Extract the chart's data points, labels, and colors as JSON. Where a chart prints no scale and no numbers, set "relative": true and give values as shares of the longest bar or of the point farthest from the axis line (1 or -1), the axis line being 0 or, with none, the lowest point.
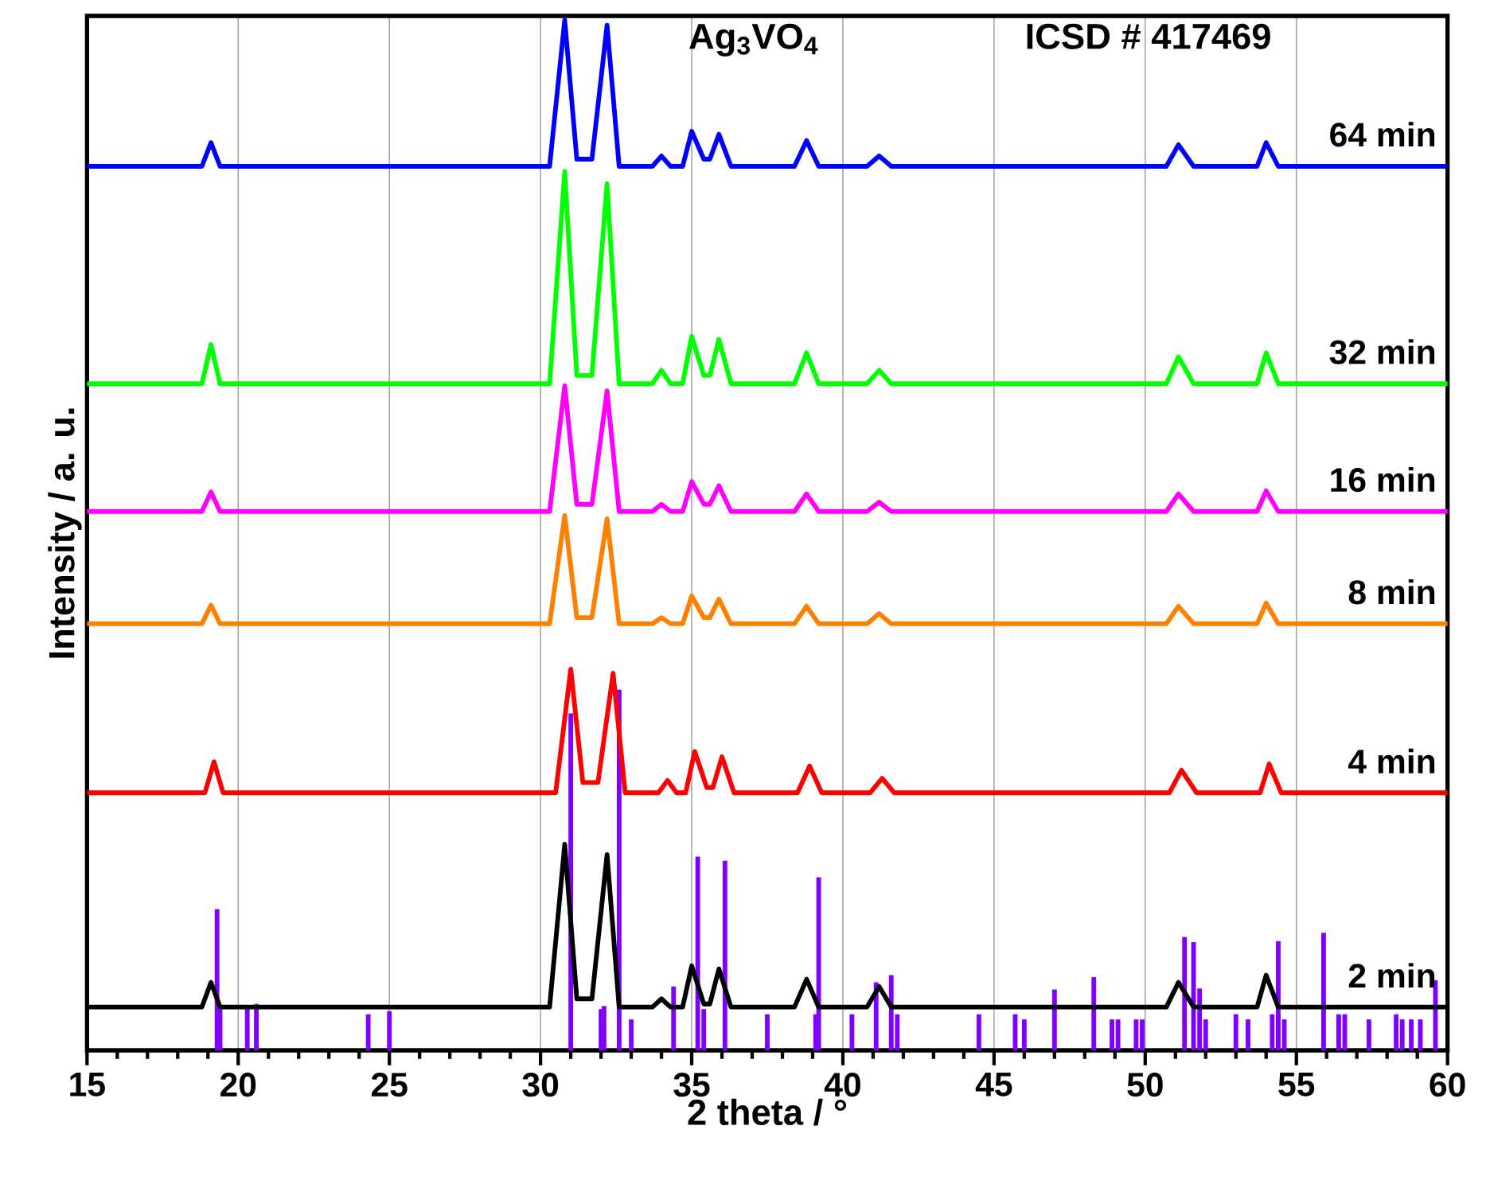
{
  "chart_data": {
    "type": "line",
    "relative": true,
    "xlabel": "2 theta / °",
    "ylabel": "Intensity / a. u.",
    "annotations": [
      "Ag$_{3}$VO$_{4}$",
      "ICSD # 417469"
    ],
    "xlim": [
      15,
      60
    ],
    "xticks": [
      15,
      20,
      25,
      30,
      35,
      40,
      45,
      50,
      55,
      60
    ],
    "grid": "x",
    "tick_labels": "x",
    "legend": false,
    "marker": "none",
    "line_style": "solid",
    "series": [
      {
        "type": "bar",
        "color": "#8000ff",
        "x": [
          19.3,
          19.4,
          20.3,
          20.6,
          24.3,
          25.0,
          31.0,
          32.0,
          32.1,
          32.6,
          33.0,
          34.4,
          35.2,
          35.4,
          36.1,
          37.5,
          39.1,
          39.2,
          40.3,
          41.1,
          41.6,
          41.8,
          44.5,
          45.7,
          46.0,
          47.0,
          48.3,
          48.9,
          49.1,
          49.7,
          49.9,
          51.3,
          51.6,
          51.8,
          52.0,
          53.0,
          53.4,
          54.2,
          54.4,
          54.6,
          55.9,
          56.4,
          56.6,
          57.4,
          58.3,
          58.5,
          58.8,
          59.1,
          59.6
        ],
        "values": [
          0.137,
          0.04,
          0.04,
          0.045,
          0.035,
          0.038,
          0.327,
          0.04,
          0.043,
          0.35,
          0.03,
          0.062,
          0.188,
          0.04,
          0.184,
          0.035,
          0.035,
          0.168,
          0.035,
          0.066,
          0.073,
          0.035,
          0.035,
          0.035,
          0.03,
          0.059,
          0.071,
          0.03,
          0.03,
          0.03,
          0.03,
          0.11,
          0.105,
          0.06,
          0.03,
          0.035,
          0.03,
          0.035,
          0.106,
          0.03,
          0.114,
          0.035,
          0.035,
          0.03,
          0.035,
          0.03,
          0.03,
          0.03,
          0.068
        ]
      },
      {
        "type": "line",
        "name": "2 min",
        "color": "#000000",
        "x": [
          15,
          18.8,
          19.1,
          19.4,
          30.3,
          30.8,
          31.2,
          31.7,
          32.2,
          32.6,
          33.7,
          34.0,
          34.3,
          34.7,
          35.0,
          35.4,
          35.6,
          35.9,
          36.3,
          38.4,
          38.8,
          39.2,
          40.8,
          41.2,
          41.6,
          50.7,
          51.1,
          51.6,
          53.7,
          54.0,
          54.4,
          60
        ],
        "values": [
          0.042,
          0.042,
          0.066,
          0.042,
          0.042,
          0.2,
          0.05,
          0.05,
          0.19,
          0.042,
          0.042,
          0.05,
          0.042,
          0.042,
          0.082,
          0.045,
          0.045,
          0.079,
          0.042,
          0.042,
          0.069,
          0.042,
          0.042,
          0.062,
          0.042,
          0.042,
          0.066,
          0.042,
          0.042,
          0.073,
          0.042,
          0.042
        ]
      },
      {
        "type": "line",
        "name": "4 min",
        "color": "#ff0000",
        "x": [
          15,
          18.9,
          19.2,
          19.5,
          30.5,
          31.0,
          31.4,
          31.9,
          32.4,
          32.8,
          33.9,
          34.2,
          34.5,
          34.8,
          35.1,
          35.5,
          35.7,
          36.0,
          36.4,
          38.5,
          38.9,
          39.3,
          40.9,
          41.3,
          41.7,
          50.8,
          51.2,
          51.7,
          53.8,
          54.1,
          54.5,
          60
        ],
        "values": [
          0.25,
          0.25,
          0.28,
          0.25,
          0.25,
          0.37,
          0.26,
          0.26,
          0.366,
          0.25,
          0.25,
          0.262,
          0.25,
          0.25,
          0.29,
          0.255,
          0.255,
          0.285,
          0.25,
          0.25,
          0.276,
          0.25,
          0.25,
          0.264,
          0.25,
          0.25,
          0.272,
          0.25,
          0.25,
          0.278,
          0.25,
          0.25
        ]
      },
      {
        "type": "line",
        "name": "8 min",
        "color": "#ff8000",
        "x": [
          15,
          18.8,
          19.1,
          19.4,
          30.3,
          30.8,
          31.2,
          31.7,
          32.2,
          32.6,
          33.7,
          34.0,
          34.3,
          34.7,
          35.0,
          35.4,
          35.6,
          35.9,
          36.3,
          38.4,
          38.8,
          39.2,
          40.8,
          41.2,
          41.6,
          50.7,
          51.1,
          51.6,
          53.7,
          54.0,
          54.4,
          60
        ],
        "values": [
          0.414,
          0.414,
          0.432,
          0.414,
          0.414,
          0.519,
          0.42,
          0.42,
          0.516,
          0.414,
          0.414,
          0.42,
          0.414,
          0.414,
          0.441,
          0.42,
          0.42,
          0.438,
          0.414,
          0.414,
          0.431,
          0.414,
          0.414,
          0.424,
          0.414,
          0.414,
          0.431,
          0.414,
          0.414,
          0.434,
          0.414,
          0.414
        ]
      },
      {
        "type": "line",
        "name": "16 min",
        "color": "#ff00ff",
        "x": [
          15,
          18.8,
          19.1,
          19.4,
          30.3,
          30.8,
          31.2,
          31.7,
          32.2,
          32.6,
          33.7,
          34.0,
          34.3,
          34.7,
          35.0,
          35.4,
          35.6,
          35.9,
          36.3,
          38.4,
          38.8,
          39.2,
          40.8,
          41.2,
          41.6,
          50.7,
          51.1,
          51.6,
          53.7,
          54.0,
          54.4,
          60
        ],
        "values": [
          0.523,
          0.523,
          0.542,
          0.523,
          0.523,
          0.645,
          0.53,
          0.53,
          0.64,
          0.523,
          0.523,
          0.53,
          0.523,
          0.523,
          0.552,
          0.53,
          0.53,
          0.548,
          0.523,
          0.523,
          0.54,
          0.523,
          0.523,
          0.532,
          0.523,
          0.523,
          0.54,
          0.523,
          0.523,
          0.543,
          0.523,
          0.523
        ]
      },
      {
        "type": "line",
        "name": "32 min",
        "color": "#00ff00",
        "x": [
          15,
          18.8,
          19.1,
          19.4,
          30.3,
          30.8,
          31.2,
          31.7,
          32.2,
          32.6,
          33.7,
          34.0,
          34.3,
          34.7,
          35.0,
          35.4,
          35.6,
          35.9,
          36.3,
          38.4,
          38.8,
          39.2,
          40.8,
          41.2,
          41.6,
          50.7,
          51.1,
          51.6,
          53.7,
          54.0,
          54.4,
          60
        ],
        "values": [
          0.647,
          0.647,
          0.685,
          0.647,
          0.647,
          0.853,
          0.655,
          0.655,
          0.841,
          0.647,
          0.647,
          0.66,
          0.647,
          0.647,
          0.693,
          0.655,
          0.655,
          0.69,
          0.647,
          0.647,
          0.677,
          0.647,
          0.647,
          0.66,
          0.647,
          0.647,
          0.673,
          0.647,
          0.647,
          0.677,
          0.647,
          0.647
        ]
      },
      {
        "type": "line",
        "name": "64 min",
        "color": "#0000ff",
        "x": [
          15,
          18.8,
          19.1,
          19.4,
          30.3,
          30.8,
          31.2,
          31.7,
          32.2,
          32.6,
          33.7,
          34.0,
          34.3,
          34.7,
          35.0,
          35.4,
          35.6,
          35.9,
          36.3,
          38.4,
          38.8,
          39.2,
          40.8,
          41.2,
          41.6,
          50.7,
          51.1,
          51.6,
          53.7,
          54.0,
          54.4,
          60
        ],
        "values": [
          0.858,
          0.858,
          0.881,
          0.858,
          0.858,
          1.0,
          0.865,
          0.865,
          0.995,
          0.858,
          0.858,
          0.868,
          0.858,
          0.858,
          0.892,
          0.865,
          0.865,
          0.889,
          0.858,
          0.858,
          0.883,
          0.858,
          0.858,
          0.868,
          0.858,
          0.858,
          0.879,
          0.858,
          0.858,
          0.881,
          0.858,
          0.858
        ]
      }
    ]
  }
}
